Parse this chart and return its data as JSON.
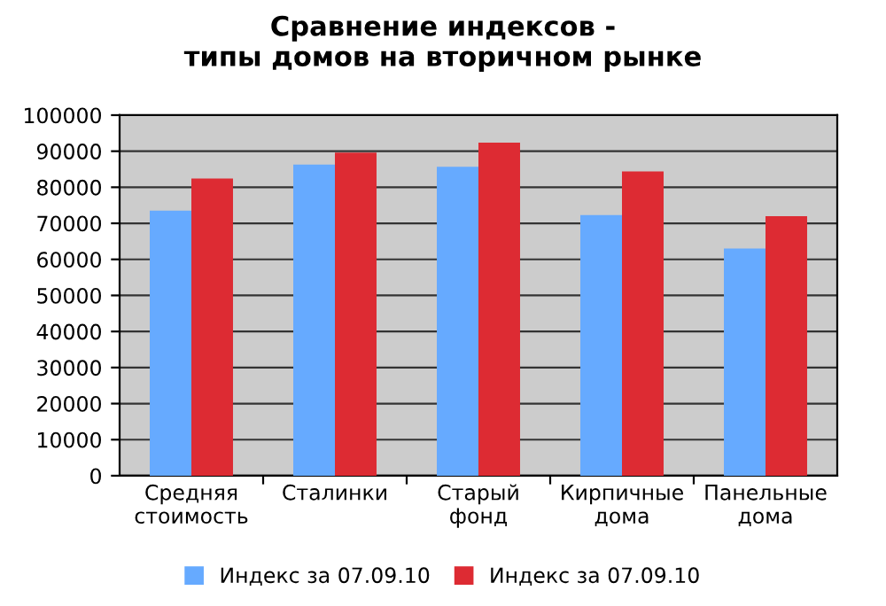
{
  "chart_data": {
    "type": "bar",
    "title": "Сравнение индексов -\nтипы домов на вторичном рынке",
    "categories": [
      "Средняя\nстоимость",
      "Сталинки",
      "Старый\nфонд",
      "Кирпичные\nдома",
      "Панельные\nдома"
    ],
    "series": [
      {
        "name": "Индекс за 07.09.10",
        "color": "#66aaff",
        "values": [
          73500,
          86300,
          85700,
          72300,
          63000
        ]
      },
      {
        "name": "Индекс за 07.09.10",
        "color": "#dd2b33",
        "values": [
          82400,
          89600,
          92400,
          84400,
          72000
        ]
      }
    ],
    "ylim": [
      0,
      100000
    ],
    "yticks": [
      0,
      10000,
      20000,
      30000,
      40000,
      50000,
      60000,
      70000,
      80000,
      90000,
      100000
    ],
    "grid": "y",
    "legend": "bottom"
  }
}
